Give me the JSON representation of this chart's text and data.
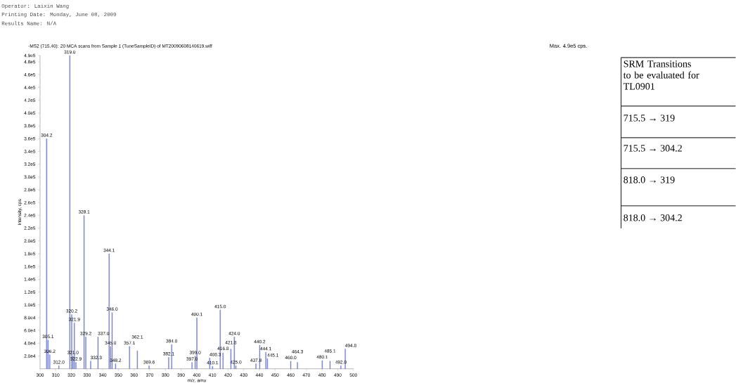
{
  "chart_data": {
    "type": "bar",
    "title": "-MS2 (715.40): 20 MCA scans from Sample 1 (TuneSampleID) of MT20090608140619.wiff",
    "xlabel": "m/z, amu",
    "ylabel": "Intensity, cps",
    "color": "#7380d6",
    "x": [
      304.2,
      305.1,
      306.2,
      312.0,
      319.0,
      320.2,
      321.0,
      321.9,
      322.9,
      328.1,
      329.2,
      332.3,
      337.0,
      344.1,
      345.0,
      346.0,
      348.2,
      357.1,
      362.1,
      369.6,
      382.1,
      384.0,
      397.0,
      399.0,
      400.1,
      408.3,
      410.1,
      415.0,
      416.8,
      421.8,
      424.0,
      425.0,
      437.8,
      440.2,
      444.1,
      445.1,
      460.0,
      464.3,
      480.1,
      485.1,
      492.0,
      494.8
    ],
    "values": [
      360000,
      45000,
      22000,
      5000,
      490000,
      85000,
      20000,
      72000,
      10000,
      240000,
      50000,
      12000,
      50000,
      180000,
      35000,
      88000,
      8000,
      35000,
      28000,
      5000,
      18000,
      38000,
      10000,
      20000,
      80000,
      17000,
      4000,
      92000,
      25000,
      31000,
      50000,
      5000,
      8000,
      37000,
      26000,
      16000,
      12000,
      10000,
      13000,
      12000,
      5000,
      31000
    ],
    "xlim": [
      300,
      500
    ],
    "xticks": [
      300,
      310,
      320,
      330,
      340,
      350,
      360,
      370,
      380,
      390,
      400,
      410,
      420,
      430,
      440,
      450,
      460,
      470,
      480,
      490,
      500
    ],
    "ylim": [
      0,
      490000
    ],
    "yticks": [
      {
        "value": 20000,
        "label": "2.0e4"
      },
      {
        "value": 40000,
        "label": "4.0e4"
      },
      {
        "value": 60000,
        "label": "6.0e4"
      },
      {
        "value": 80000,
        "label": "8.0e4"
      },
      {
        "value": 100000,
        "label": "1.0e5"
      },
      {
        "value": 120000,
        "label": "1.2e5"
      },
      {
        "value": 140000,
        "label": "1.4e5"
      },
      {
        "value": 160000,
        "label": "1.6e5"
      },
      {
        "value": 180000,
        "label": "1.8e5"
      },
      {
        "value": 200000,
        "label": "2.0e5"
      },
      {
        "value": 220000,
        "label": "2.2e5"
      },
      {
        "value": 240000,
        "label": "2.4e5"
      },
      {
        "value": 260000,
        "label": "2.6e5"
      },
      {
        "value": 280000,
        "label": "2.8e5"
      },
      {
        "value": 300000,
        "label": "3.0e5"
      },
      {
        "value": 320000,
        "label": "3.2e5"
      },
      {
        "value": 340000,
        "label": "3.4e5"
      },
      {
        "value": 360000,
        "label": "3.6e5"
      },
      {
        "value": 380000,
        "label": "3.8e5"
      },
      {
        "value": 400000,
        "label": "4.0e5"
      },
      {
        "value": 420000,
        "label": "4.2e5"
      },
      {
        "value": 440000,
        "label": "4.4e5"
      },
      {
        "value": 460000,
        "label": "4.6e5"
      },
      {
        "value": 480000,
        "label": "4.8e5"
      },
      {
        "value": 490000,
        "label": "4.9e5"
      }
    ],
    "annotations": [
      "Operator: Laixin Wang",
      "Printing Date: Monday, June 08, 2009",
      "Results Name: N/A",
      "Max. 4.9e5 cps.",
      "SRM Transitions to be evaluated for TL0901",
      "715.5 → 319",
      "715.5 → 304.2",
      "818.0 → 319",
      "818.0 → 304.2",
      {
        "text": "304.2",
        "x": 304.2,
        "y": 360000
      },
      {
        "text": "305.1",
        "x": 305.1,
        "y": 45000
      },
      {
        "text": "306.2",
        "x": 306.2,
        "y": 22000
      },
      {
        "text": "312.0",
        "x": 312.0,
        "y": 5000
      },
      {
        "text": "319.0",
        "x": 319.0,
        "y": 490000
      },
      {
        "text": "320.2",
        "x": 320.2,
        "y": 85000
      },
      {
        "text": "321.0",
        "x": 321.0,
        "y": 20000
      },
      {
        "text": "321.9",
        "x": 321.9,
        "y": 72000
      },
      {
        "text": "322.9",
        "x": 322.9,
        "y": 10000
      },
      {
        "text": "328.1",
        "x": 328.1,
        "y": 240000
      },
      {
        "text": "329.2",
        "x": 329.2,
        "y": 50000
      },
      {
        "text": "332.3",
        "x": 332.3,
        "y": 12000
      },
      {
        "text": "337.0",
        "x": 337.0,
        "y": 50000
      },
      {
        "text": "344.1",
        "x": 344.1,
        "y": 180000
      },
      {
        "text": "345.0",
        "x": 345.0,
        "y": 35000
      },
      {
        "text": "346.0",
        "x": 346.0,
        "y": 88000
      },
      {
        "text": "348.2",
        "x": 348.2,
        "y": 8000
      },
      {
        "text": "357.1",
        "x": 357.1,
        "y": 35000
      },
      {
        "text": "362.1",
        "x": 362.1,
        "y": 28000
      },
      {
        "text": "369.6",
        "x": 369.6,
        "y": 5000
      },
      {
        "text": "382.1",
        "x": 382.1,
        "y": 18000
      },
      {
        "text": "384.0",
        "x": 384.0,
        "y": 38000
      },
      {
        "text": "397.0",
        "x": 397.0,
        "y": 10000
      },
      {
        "text": "399.0",
        "x": 399.0,
        "y": 20000
      },
      {
        "text": "400.1",
        "x": 400.1,
        "y": 80000
      },
      {
        "text": "408.3",
        "x": 408.3,
        "y": 17000
      },
      {
        "text": "410.1",
        "x": 410.1,
        "y": 4000
      },
      {
        "text": "415.0",
        "x": 415.0,
        "y": 92000
      },
      {
        "text": "416.8",
        "x": 416.8,
        "y": 25000
      },
      {
        "text": "421.8",
        "x": 421.8,
        "y": 31000
      },
      {
        "text": "424.0",
        "x": 424.0,
        "y": 50000
      },
      {
        "text": "425.0",
        "x": 425.0,
        "y": 5000
      },
      {
        "text": "437.8",
        "x": 437.8,
        "y": 8000
      },
      {
        "text": "440.2",
        "x": 440.2,
        "y": 37000
      },
      {
        "text": "444.1",
        "x": 444.1,
        "y": 26000
      },
      {
        "text": "445.1",
        "x": 445.1,
        "y": 16000
      },
      {
        "text": "460.0",
        "x": 460.0,
        "y": 12000
      },
      {
        "text": "464.3",
        "x": 464.3,
        "y": 10000
      },
      {
        "text": "480.1",
        "x": 480.1,
        "y": 13000
      },
      {
        "text": "485.1",
        "x": 485.1,
        "y": 12000
      },
      {
        "text": "492.0",
        "x": 492.0,
        "y": 5000
      },
      {
        "text": "494.8",
        "x": 494.8,
        "y": 31000
      }
    ]
  }
}
